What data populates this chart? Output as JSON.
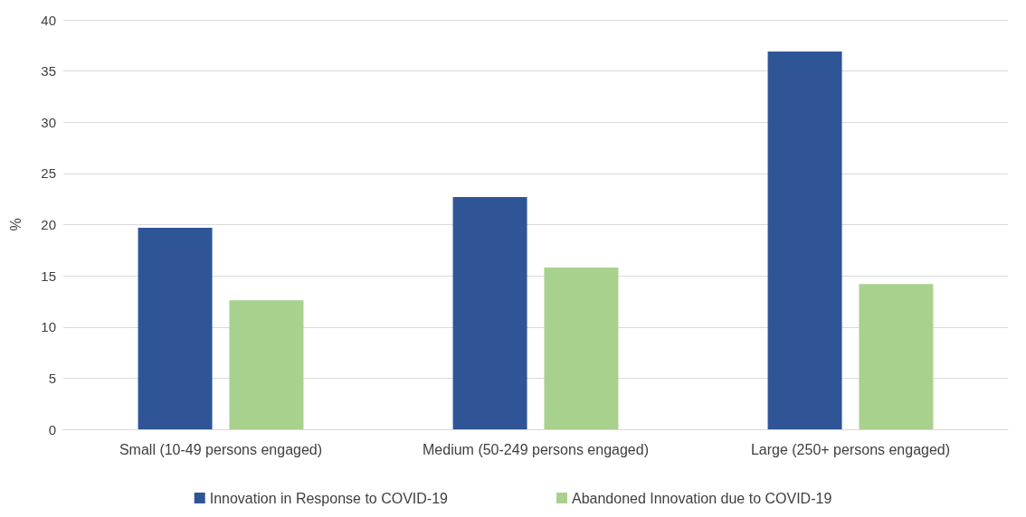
{
  "chart_data": {
    "type": "bar",
    "ylabel": "%",
    "categories": [
      "Small (10-49 persons engaged)",
      "Medium (50-249 persons engaged)",
      "Large (250+ persons engaged)"
    ],
    "series": [
      {
        "name": "Innovation in Response to COVID-19",
        "color": "#2f5597",
        "values": [
          19.7,
          22.7,
          36.9
        ]
      },
      {
        "name": "Abandoned Innovation due to COVID-19",
        "color": "#a9d18e",
        "values": [
          12.6,
          15.8,
          14.2
        ]
      }
    ],
    "ylim": [
      0,
      40
    ],
    "yticks": [
      0,
      5,
      10,
      15,
      20,
      25,
      30,
      35,
      40
    ],
    "grid": "y",
    "legend": "bottom"
  }
}
